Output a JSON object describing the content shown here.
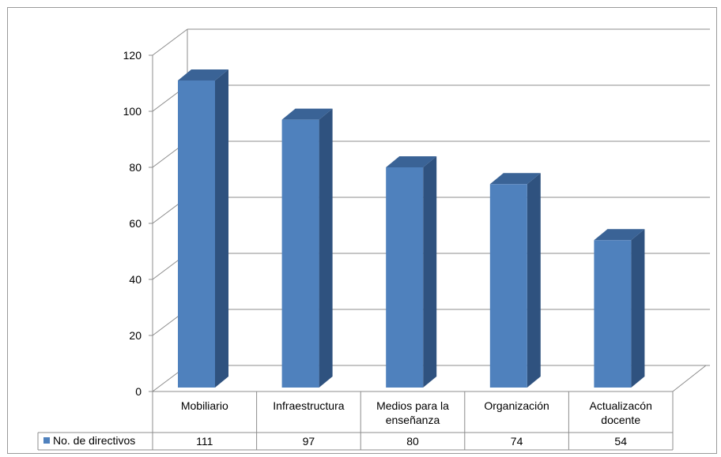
{
  "chart_data": {
    "type": "bar",
    "categories": [
      [
        "Mobiliario"
      ],
      [
        "Infraestructura"
      ],
      [
        "Medios para la",
        "enseñanza"
      ],
      [
        "Organización"
      ],
      [
        "Actualizacón",
        "docente"
      ]
    ],
    "series": [
      {
        "name": "No. de directivos",
        "values": [
          111,
          97,
          80,
          74,
          54
        ],
        "color": "#4f81bd"
      }
    ],
    "ylim": [
      0,
      120
    ],
    "yticks": [
      0,
      20,
      40,
      60,
      80,
      100,
      120
    ],
    "title": "",
    "xlabel": "",
    "ylabel": "",
    "grid": true,
    "legend": "data-table-left",
    "style": "3d-column-with-data-table"
  }
}
